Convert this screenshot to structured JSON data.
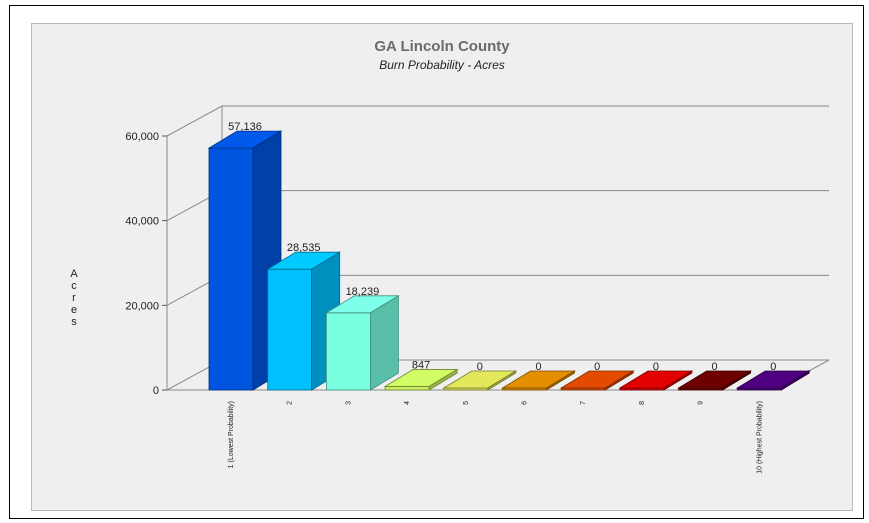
{
  "chart_data": {
    "type": "bar",
    "title": "GA Lincoln County",
    "subtitle": "Burn Probability - Acres",
    "ylabel": "Acres",
    "xlabel": "",
    "ylim": [
      0,
      60000
    ],
    "yticks": [
      0,
      20000,
      40000,
      60000
    ],
    "ytick_labels": [
      "0",
      "20,000",
      "40,000",
      "60,000"
    ],
    "grid": true,
    "legend": "none",
    "categories": [
      "1 (Lowest Probability)",
      "2",
      "3",
      "4",
      "5",
      "6",
      "7",
      "8",
      "9",
      "10 (Highest Probability)"
    ],
    "values": [
      57136,
      28535,
      18239,
      847,
      0,
      0,
      0,
      0,
      0,
      0
    ],
    "value_labels": [
      "57,136",
      "28,535",
      "18,239",
      "847",
      "0",
      "0",
      "0",
      "0",
      "0",
      "0"
    ],
    "colors": [
      "#0055e0",
      "#00c0ff",
      "#78ffe0",
      "#c8f060",
      "#d8dc58",
      "#d88800",
      "#d84800",
      "#d80000",
      "#6a0000",
      "#4a007a"
    ]
  }
}
